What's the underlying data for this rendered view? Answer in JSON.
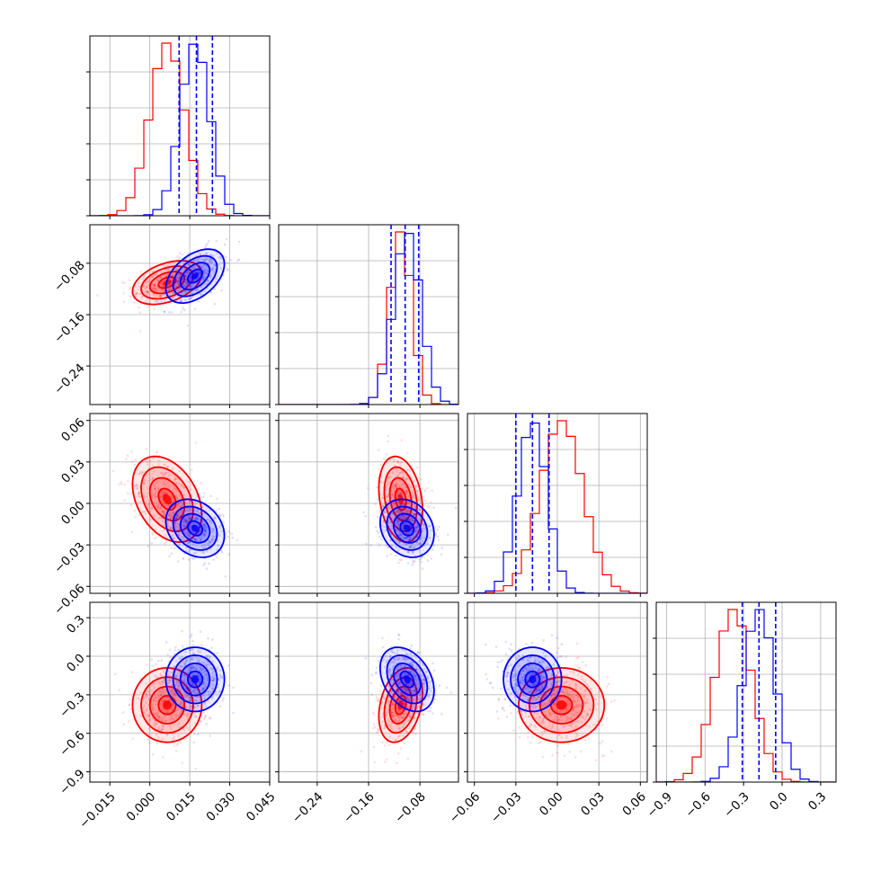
{
  "chart_data": {
    "type": "corner",
    "parameters": 4,
    "colors": {
      "red": "#ff0000",
      "blue": "#0000ff",
      "grid": "#b0b0b0",
      "axes": "#000000"
    },
    "grid": true,
    "axes": [
      {
        "ticks": [
          -0.015,
          0.0,
          0.015,
          0.03,
          0.045
        ],
        "tick_labels": [
          "−0.015",
          "0.000",
          "0.015",
          "0.030",
          "0.045"
        ],
        "range": [
          -0.0225,
          0.045
        ]
      },
      {
        "ticks": [
          -0.24,
          -0.16,
          -0.08
        ],
        "tick_labels": [
          "−0.24",
          "−0.16",
          "−0.08"
        ],
        "range": [
          -0.3,
          -0.02
        ]
      },
      {
        "ticks": [
          -0.06,
          -0.03,
          0.0,
          0.03,
          0.06
        ],
        "tick_labels": [
          "−0.06",
          "−0.03",
          "0.00",
          "0.03",
          "0.06"
        ],
        "range": [
          -0.065,
          0.065
        ]
      },
      {
        "ticks": [
          -0.9,
          -0.6,
          -0.3,
          0.0,
          0.3
        ],
        "tick_labels": [
          "−0.9",
          "−0.6",
          "−0.3",
          "0.0",
          "0.3"
        ],
        "range": [
          -0.98,
          0.42
        ]
      }
    ],
    "series": [
      {
        "color": "red",
        "means": [
          0.0065,
          -0.11,
          0.003,
          -0.38
        ],
        "sds": [
          0.0065,
          0.017,
          0.0155,
          0.145
        ],
        "corr": {
          "0-1": 0.4,
          "0-2": -0.35,
          "0-3": 0.0,
          "1-2": -0.25,
          "1-3": 0.3,
          "2-3": 0.0
        }
      },
      {
        "color": "blue",
        "means": [
          0.017,
          -0.1,
          -0.018,
          -0.18
        ],
        "sds": [
          0.0055,
          0.021,
          0.0105,
          0.125
        ],
        "corr": {
          "0-1": 0.45,
          "0-2": -0.25,
          "0-3": 0.0,
          "1-2": -0.2,
          "1-3": -0.35,
          "2-3": 0.0
        }
      }
    ],
    "quantile_lines": [
      [
        0.011,
        0.0175,
        0.0235
      ],
      [
        -0.125,
        -0.103,
        -0.082
      ],
      [
        -0.03,
        -0.018,
        -0.006
      ],
      [
        -0.31,
        -0.18,
        -0.05
      ]
    ],
    "histogram_bins": 20,
    "contour_sigma_levels": [
      0.5,
      1.0,
      1.5,
      2.0
    ]
  }
}
